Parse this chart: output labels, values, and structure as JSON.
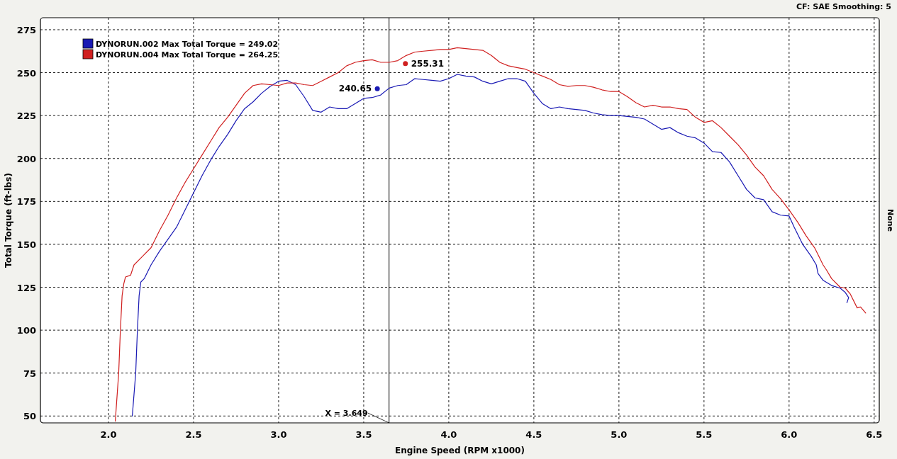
{
  "chart_data": {
    "type": "line",
    "xlabel": "Engine Speed (RPM x1000)",
    "ylabel": "Total Torque (ft-lbs)",
    "y2label": "None",
    "xlim": [
      1.6,
      6.53
    ],
    "ylim": [
      46,
      282
    ],
    "xticks": [
      {
        "value": 2,
        "label": "2.0"
      },
      {
        "value": 2.5,
        "label": "2.5"
      },
      {
        "value": 3,
        "label": "3.0"
      },
      {
        "value": 3.5,
        "label": "3.5"
      },
      {
        "value": 4,
        "label": "4.0"
      },
      {
        "value": 4.5,
        "label": "4.5"
      },
      {
        "value": 5,
        "label": "5.0"
      },
      {
        "value": 5.5,
        "label": "5.5"
      },
      {
        "value": 6,
        "label": "6.0"
      },
      {
        "value": 6.5,
        "label": "6.5"
      }
    ],
    "yticks": [
      50,
      75,
      100,
      125,
      150,
      175,
      200,
      225,
      250,
      275
    ],
    "grid": true,
    "legend": "top left",
    "line_style": "solid",
    "marker": "none",
    "series": [
      {
        "name": "DYNORUN.002 Max Total Torque = 249.02",
        "color": "#1a1ab4",
        "x": [
          2.14,
          2.16,
          2.17,
          2.18,
          2.19,
          2.21,
          2.25,
          2.3,
          2.35,
          2.4,
          2.45,
          2.5,
          2.55,
          2.6,
          2.65,
          2.7,
          2.75,
          2.8,
          2.85,
          2.9,
          2.95,
          3.0,
          3.05,
          3.1,
          3.15,
          3.2,
          3.25,
          3.3,
          3.35,
          3.4,
          3.45,
          3.5,
          3.55,
          3.6,
          3.65,
          3.7,
          3.75,
          3.8,
          3.85,
          3.9,
          3.95,
          4.0,
          4.05,
          4.1,
          4.15,
          4.2,
          4.25,
          4.3,
          4.35,
          4.4,
          4.45,
          4.5,
          4.55,
          4.6,
          4.65,
          4.7,
          4.75,
          4.8,
          4.85,
          4.9,
          4.95,
          5.0,
          5.05,
          5.1,
          5.15,
          5.2,
          5.25,
          5.3,
          5.35,
          5.4,
          5.45,
          5.5,
          5.55,
          5.6,
          5.65,
          5.7,
          5.75,
          5.8,
          5.85,
          5.9,
          5.95,
          6.0,
          6.03,
          6.08,
          6.13,
          6.16,
          6.17,
          6.2,
          6.25,
          6.3,
          6.33,
          6.35,
          6.34
        ],
        "values": [
          50,
          75,
          100,
          120,
          128,
          130,
          138,
          146,
          153,
          160,
          170,
          180,
          190,
          199,
          207,
          214,
          222,
          229,
          233,
          238,
          242,
          245,
          245.5,
          243,
          236,
          228,
          227,
          230,
          229,
          229,
          232,
          235,
          235.5,
          237,
          241,
          242.5,
          243,
          246.5,
          246,
          245.5,
          245,
          246.5,
          249,
          248,
          247.5,
          245,
          243.5,
          245,
          246.5,
          246.5,
          245,
          238,
          232,
          229,
          230,
          229,
          228.5,
          228,
          226.5,
          225.5,
          225,
          225,
          224.5,
          224,
          223,
          220,
          217,
          218,
          215,
          213,
          212,
          209,
          204,
          203.5,
          198,
          190,
          182,
          177,
          176,
          169,
          167,
          166.5,
          160,
          150,
          143,
          138,
          133,
          129,
          126,
          124.5,
          122,
          119,
          116
        ]
      },
      {
        "name": "DYNORUN.004 Max Total Torque = 264.25",
        "color": "#d02020",
        "x": [
          2.04,
          2.06,
          2.07,
          2.08,
          2.09,
          2.1,
          2.13,
          2.15,
          2.2,
          2.25,
          2.3,
          2.35,
          2.4,
          2.45,
          2.5,
          2.55,
          2.6,
          2.65,
          2.7,
          2.75,
          2.8,
          2.85,
          2.9,
          2.95,
          3.0,
          3.05,
          3.1,
          3.15,
          3.2,
          3.25,
          3.3,
          3.35,
          3.4,
          3.45,
          3.5,
          3.55,
          3.6,
          3.65,
          3.7,
          3.75,
          3.8,
          3.85,
          3.9,
          3.95,
          4.0,
          4.05,
          4.1,
          4.15,
          4.2,
          4.25,
          4.3,
          4.35,
          4.4,
          4.45,
          4.5,
          4.55,
          4.6,
          4.65,
          4.7,
          4.75,
          4.8,
          4.85,
          4.9,
          4.95,
          5.0,
          5.05,
          5.1,
          5.15,
          5.2,
          5.25,
          5.3,
          5.35,
          5.4,
          5.45,
          5.5,
          5.55,
          5.6,
          5.65,
          5.7,
          5.75,
          5.8,
          5.85,
          5.9,
          5.95,
          6.0,
          6.05,
          6.1,
          6.15,
          6.2,
          6.22,
          6.25,
          6.3,
          6.33,
          6.36,
          6.4,
          6.42,
          6.45
        ],
        "values": [
          47,
          75,
          100,
          120,
          127,
          131,
          132,
          138,
          143,
          148,
          158,
          167,
          177,
          186,
          194,
          202,
          210,
          218,
          224,
          231,
          238,
          242.5,
          243.5,
          243,
          242.5,
          244,
          244,
          243,
          242.5,
          245,
          247.5,
          250,
          254,
          256,
          257,
          257.5,
          256,
          256,
          257,
          260,
          262,
          262.5,
          263,
          263.5,
          263.5,
          264.5,
          264,
          263.5,
          263,
          260,
          256,
          254,
          253,
          252,
          250,
          248,
          246,
          243,
          242,
          242.5,
          242.5,
          241.5,
          240,
          239,
          239,
          236,
          232.5,
          230,
          231,
          230,
          230,
          229,
          228.5,
          224,
          221,
          222,
          218,
          213,
          208,
          202,
          195,
          190,
          182,
          176.5,
          170,
          163,
          155,
          148,
          138,
          135,
          130,
          125,
          124.5,
          121,
          113,
          113.5,
          110
        ]
      }
    ],
    "ref_lines": [
      {
        "axis": "x",
        "value": 3.649,
        "label": "X = 3.649",
        "color": "#000000"
      }
    ],
    "annotations": [
      {
        "text": "240.65",
        "x": 3.58,
        "y": 240.65
      },
      {
        "text": "255.31",
        "x": 3.745,
        "y": 255.31
      },
      "CF: SAE  Smoothing: 5"
    ]
  }
}
